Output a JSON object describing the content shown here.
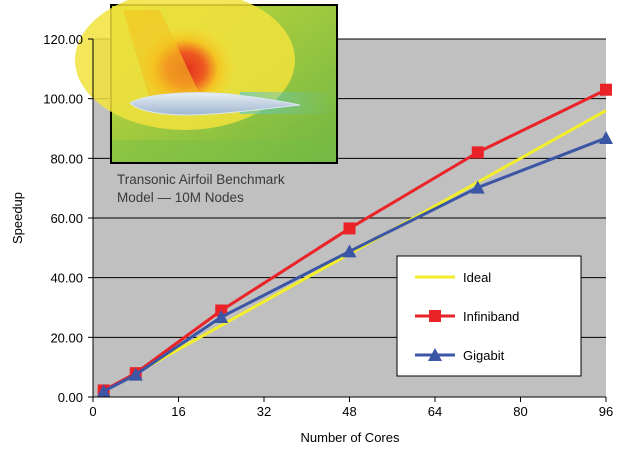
{
  "chart_data": {
    "type": "line",
    "title": "",
    "xlabel": "Number of Cores",
    "ylabel": "Speedup",
    "xlim": [
      0,
      96
    ],
    "ylim": [
      0,
      120
    ],
    "xticks": [
      0,
      16,
      32,
      48,
      64,
      80,
      96
    ],
    "xtick_labels": [
      "0",
      "16",
      "32",
      "48",
      "64",
      "80",
      "96"
    ],
    "yticks": [
      0,
      20,
      40,
      60,
      80,
      100,
      120
    ],
    "ytick_labels": [
      "0.00",
      "20.00",
      "40.00",
      "60.00",
      "80.00",
      "100.00",
      "120.00"
    ],
    "grid": "horizontal",
    "plot_background": "#c0c0c0",
    "legend_position": "lower-right",
    "series": [
      {
        "name": "Ideal",
        "color": "#f2ee2a",
        "marker": "none",
        "x": [
          2,
          8,
          24,
          48,
          72,
          96
        ],
        "y": [
          2,
          8,
          24,
          48,
          72,
          96
        ]
      },
      {
        "name": "Infiniband",
        "color": "#ea2329",
        "marker": "square",
        "x": [
          2,
          8,
          24,
          48,
          72,
          96
        ],
        "y": [
          2.2,
          8.0,
          29.0,
          56.5,
          82.0,
          103.0
        ]
      },
      {
        "name": "Gigabit",
        "color": "#3b56a4",
        "marker": "triangle",
        "x": [
          2,
          8,
          24,
          48,
          72,
          96
        ],
        "y": [
          1.9,
          7.5,
          26.8,
          48.8,
          70.2,
          86.8
        ]
      }
    ],
    "inset": {
      "description_icon": "airfoil-flow-image",
      "caption_lines": [
        "Transonic Airfoil Benchmark",
        "Model — 10M Nodes"
      ]
    }
  }
}
